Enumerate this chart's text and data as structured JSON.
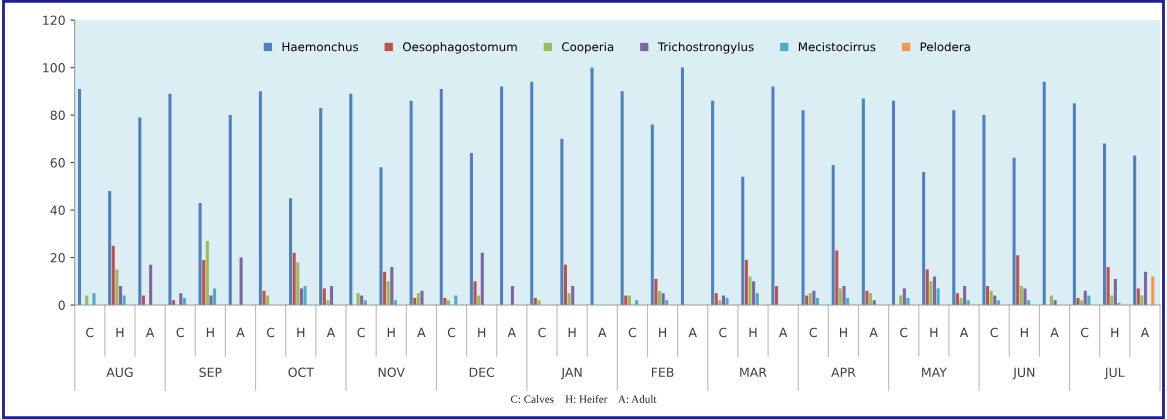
{
  "chart_data": {
    "type": "bar",
    "categories": [
      "C",
      "H",
      "A",
      "C",
      "H",
      "A",
      "C",
      "H",
      "A",
      "C",
      "H",
      "A",
      "C",
      "H",
      "A",
      "C",
      "H",
      "A",
      "C",
      "H",
      "A",
      "C",
      "H",
      "A",
      "C",
      "H",
      "A",
      "C",
      "H",
      "A",
      "C",
      "H",
      "A",
      "C",
      "H",
      "A"
    ],
    "series": [
      {
        "name": "Haemonchus",
        "color": "#4f81bd",
        "values": [
          91,
          48,
          79,
          89,
          43,
          80,
          90,
          45,
          83,
          89,
          58,
          86,
          91,
          64,
          92,
          94,
          70,
          100,
          90,
          76,
          100,
          86,
          54,
          92,
          82,
          59,
          87,
          86,
          56,
          82,
          80,
          62,
          94,
          85,
          68,
          63
        ]
      },
      {
        "name": "Oesophagostomum",
        "color": "#c0504d",
        "values": [
          0,
          25,
          4,
          2,
          19,
          0,
          6,
          22,
          7,
          0,
          14,
          3,
          3,
          10,
          0,
          3,
          17,
          0,
          4,
          11,
          0,
          5,
          19,
          8,
          4,
          23,
          6,
          0,
          15,
          5,
          8,
          21,
          0,
          3,
          16,
          7
        ]
      },
      {
        "name": "Cooperia",
        "color": "#9bbb59",
        "values": [
          4,
          15,
          0,
          0,
          27,
          0,
          4,
          18,
          2,
          5,
          10,
          5,
          2,
          4,
          0,
          2,
          5,
          0,
          4,
          6,
          0,
          2,
          12,
          0,
          5,
          7,
          5,
          4,
          10,
          3,
          6,
          8,
          4,
          2,
          4,
          4
        ]
      },
      {
        "name": "Trichostrongylus",
        "color": "#8064a2",
        "values": [
          0,
          8,
          17,
          5,
          4,
          20,
          0,
          7,
          8,
          4,
          16,
          6,
          0,
          22,
          8,
          null,
          8,
          0,
          0,
          5,
          0,
          4,
          10,
          0,
          6,
          8,
          2,
          7,
          12,
          8,
          4,
          7,
          2,
          6,
          11,
          14
        ]
      },
      {
        "name": "Mecistocirrus",
        "color": "#4bacc6",
        "values": [
          5,
          4,
          0,
          3,
          7,
          0,
          0,
          8,
          0,
          2,
          2,
          0,
          4,
          0,
          0,
          0,
          0,
          0,
          2,
          2,
          0,
          3,
          5,
          0,
          3,
          3,
          0,
          3,
          7,
          2,
          2,
          2,
          0,
          4,
          1,
          0
        ]
      },
      {
        "name": "Pelodera",
        "color": "#f79646",
        "values": [
          0,
          0,
          0,
          0,
          0,
          0,
          0,
          0,
          0,
          0,
          0,
          0,
          0,
          0,
          0,
          0,
          0,
          0,
          0,
          0,
          0,
          0,
          0,
          0,
          0,
          0,
          0,
          0,
          0,
          0,
          0,
          0,
          0,
          0,
          0,
          12
        ]
      }
    ],
    "ylim": [
      0,
      120
    ],
    "yticks": [
      0,
      20,
      40,
      60,
      80,
      100,
      120
    ],
    "grid": false,
    "legend": "top",
    "annotations": [
      "AUG",
      "SEP",
      "OCT",
      "NOV",
      "DEC",
      "JAN",
      "FEB",
      "MAR",
      "APR",
      "MAY",
      "JUN",
      "JUL",
      "C: Calves    H: Heifer    A: Adult"
    ]
  }
}
